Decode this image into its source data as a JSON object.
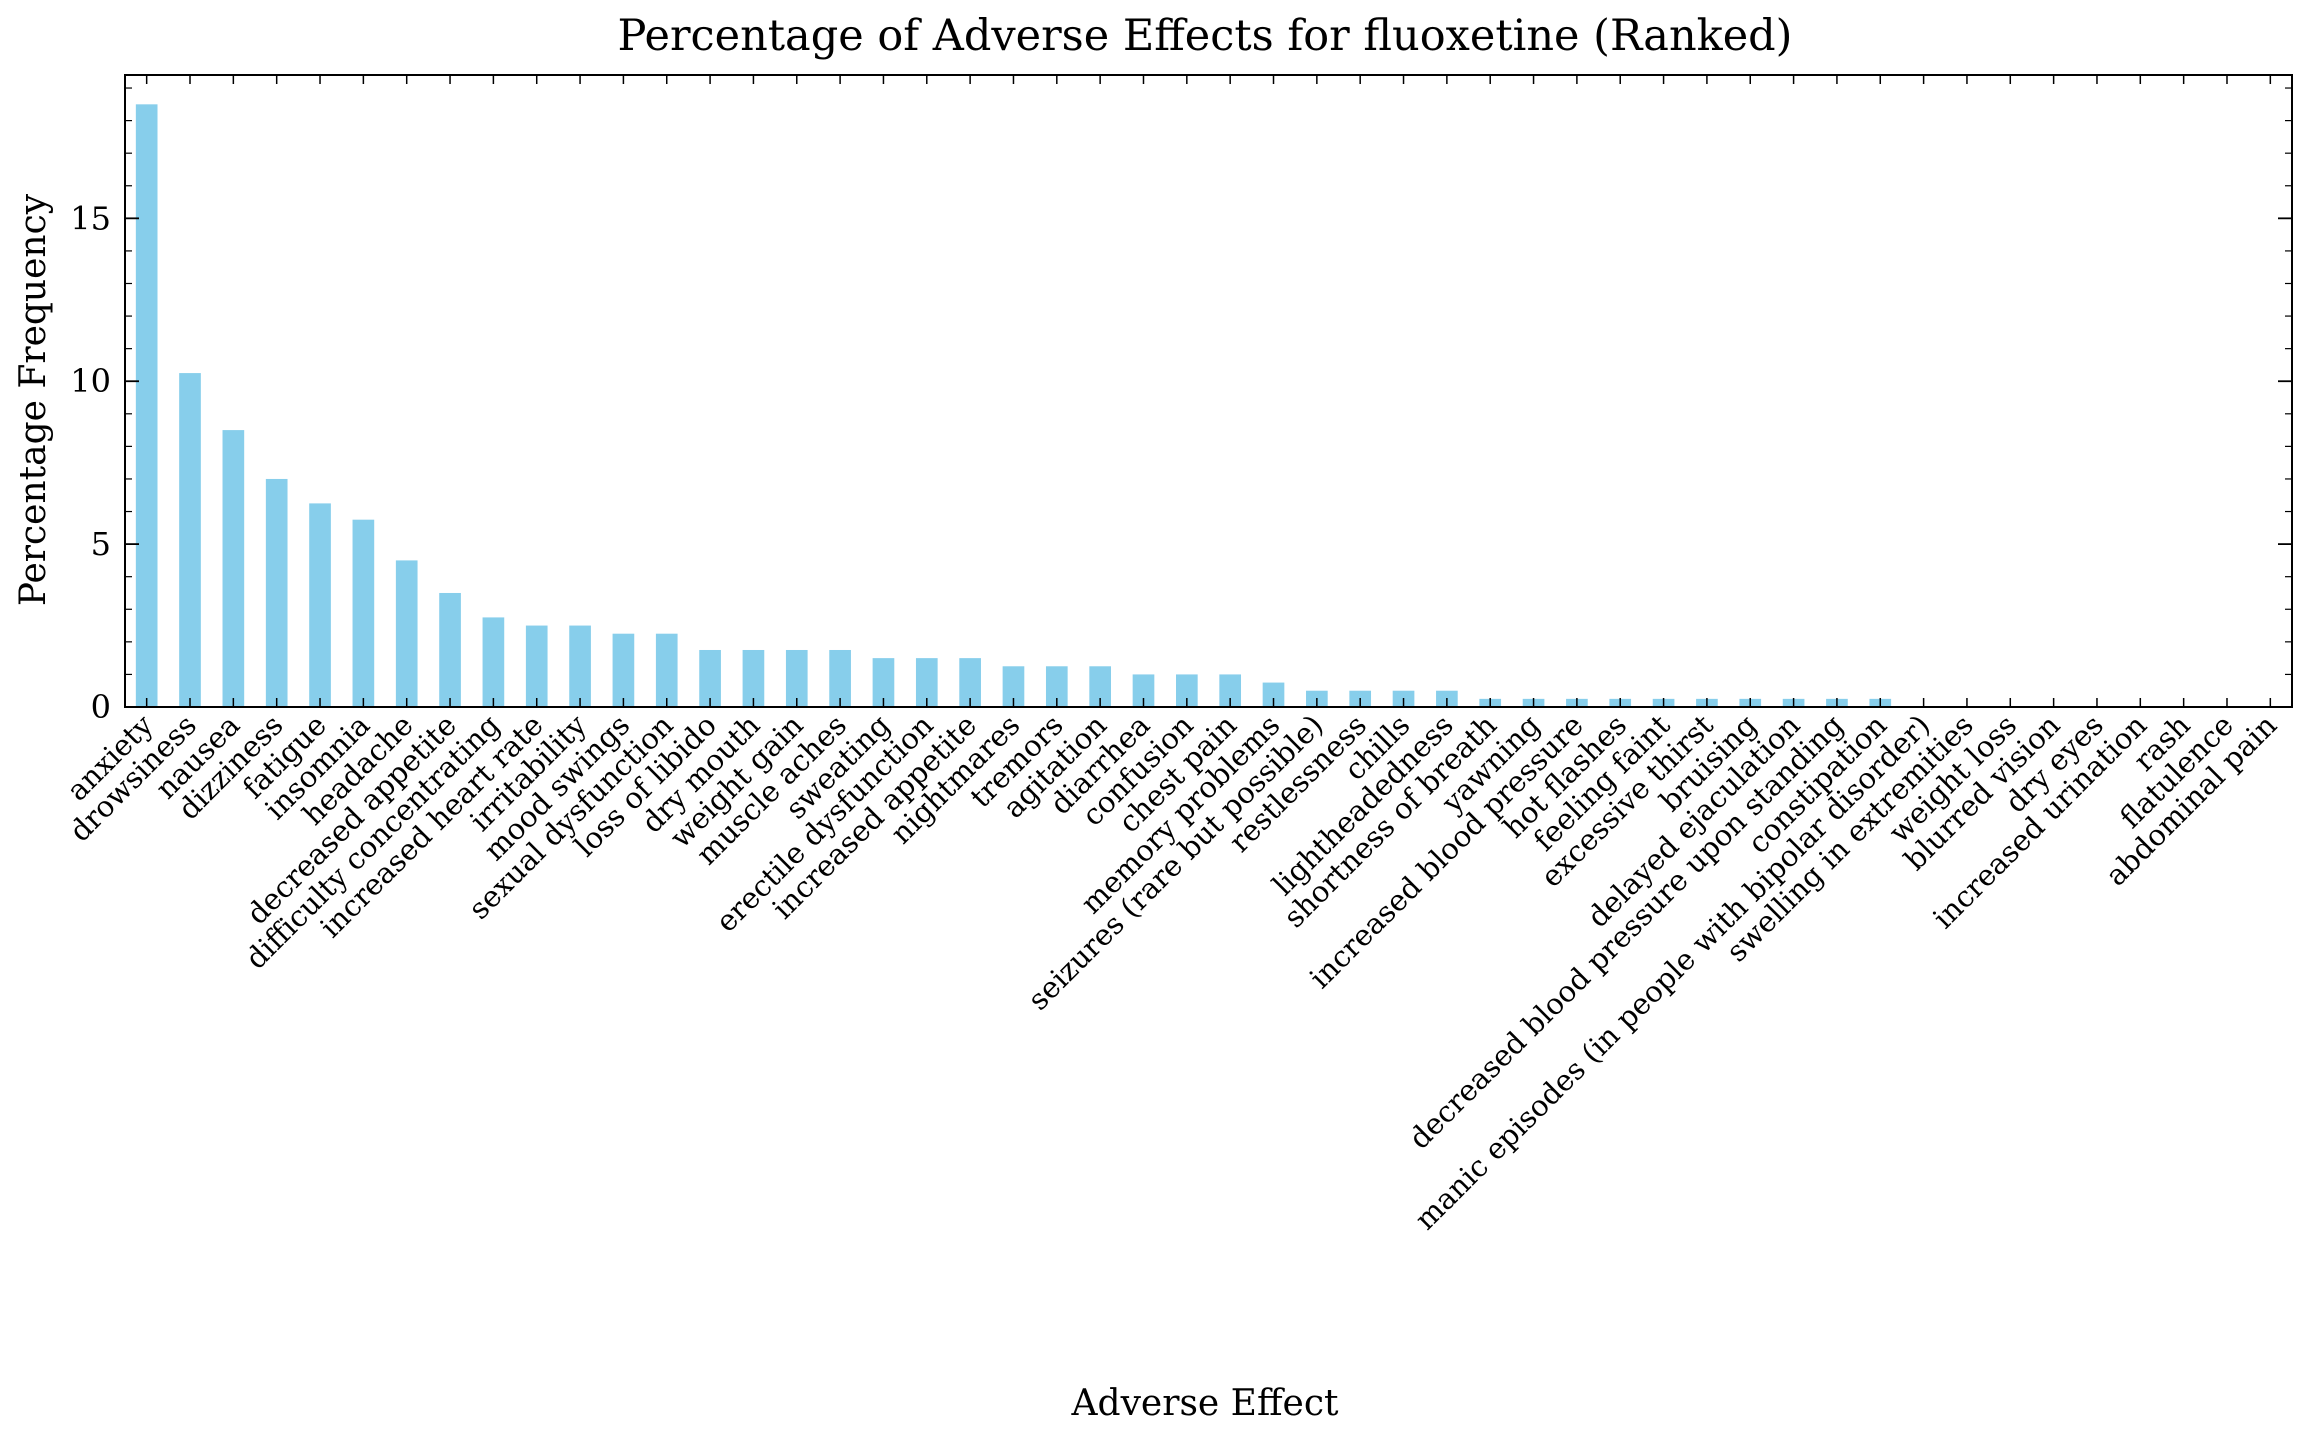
{
  "colors": {
    "bar": "#87CEEB",
    "axis": "#000000",
    "background": "#ffffff"
  },
  "chart_data": {
    "type": "bar",
    "title": "Percentage of Adverse Effects for fluoxetine (Ranked)",
    "xlabel": "Adverse Effect",
    "ylabel": "Percentage Frequency",
    "ylim": [
      0,
      19.4
    ],
    "yticks": [
      0,
      5,
      10,
      15
    ],
    "grid": false,
    "categories": [
      "anxiety",
      "drowsiness",
      "nausea",
      "dizziness",
      "fatigue",
      "insomnia",
      "headache",
      "decreased appetite",
      "difficulty concentrating",
      "increased heart rate",
      "irritability",
      "mood swings",
      "sexual dysfunction",
      "loss of libido",
      "dry mouth",
      "weight gain",
      "muscle aches",
      "sweating",
      "erectile dysfunction",
      "increased appetite",
      "nightmares",
      "tremors",
      "agitation",
      "diarrhea",
      "confusion",
      "chest pain",
      "memory problems",
      "seizures (rare but possible)",
      "restlessness",
      "chills",
      "lightheadedness",
      "shortness of breath",
      "yawning",
      "increased blood pressure",
      "hot flashes",
      "feeling faint",
      "excessive thirst",
      "bruising",
      "delayed ejaculation",
      "decreased blood pressure upon standing",
      "constipation",
      "manic episodes (in people with bipolar disorder)",
      "swelling in extremities",
      "weight loss",
      "blurred vision",
      "dry eyes",
      "increased urination",
      "rash",
      "flatulence",
      "abdominal pain"
    ],
    "values": [
      18.5,
      10.25,
      8.5,
      7.0,
      6.25,
      5.75,
      4.5,
      3.5,
      2.75,
      2.5,
      2.5,
      2.25,
      2.25,
      1.75,
      1.75,
      1.75,
      1.75,
      1.5,
      1.5,
      1.5,
      1.25,
      1.25,
      1.25,
      1.0,
      1.0,
      1.0,
      0.75,
      0.5,
      0.5,
      0.5,
      0.5,
      0.25,
      0.25,
      0.25,
      0.25,
      0.25,
      0.25,
      0.25,
      0.25,
      0.25,
      0.25,
      0.0,
      0.0,
      0.0,
      0.0,
      0.0,
      0.0,
      0.0,
      0.0,
      0.0
    ]
  }
}
